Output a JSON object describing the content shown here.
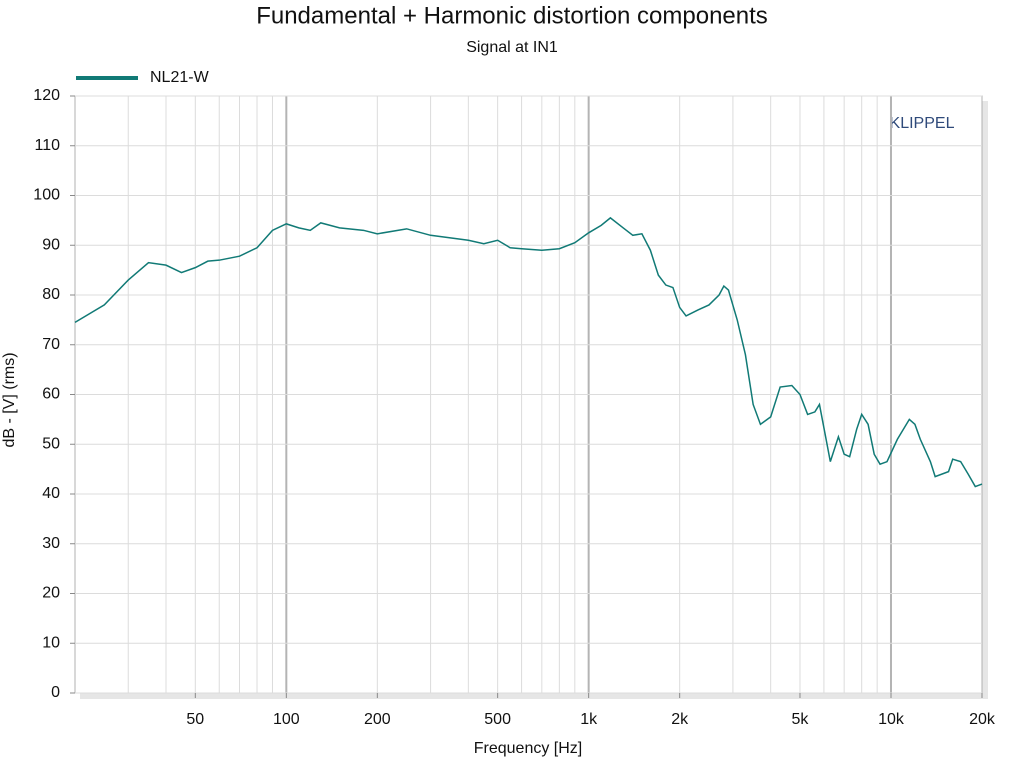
{
  "chart_data": {
    "type": "line",
    "title": "Fundamental + Harmonic distortion components",
    "subtitle": "Signal at IN1",
    "watermark": "KLIPPEL",
    "xlabel": "Frequency [Hz]",
    "ylabel": "dB - [V]  (rms)",
    "xscale": "log",
    "xlim": [
      20,
      20000
    ],
    "ylim": [
      0,
      120
    ],
    "xticks": [
      50,
      100,
      200,
      500,
      {
        "value": 1000,
        "label": "1k"
      },
      {
        "value": 2000,
        "label": "2k"
      },
      {
        "value": 5000,
        "label": "5k"
      },
      {
        "value": 10000,
        "label": "10k"
      },
      {
        "value": 20000,
        "label": "20k"
      }
    ],
    "xgrid": [
      30,
      40,
      50,
      60,
      70,
      80,
      90,
      100,
      200,
      300,
      400,
      500,
      600,
      700,
      800,
      900,
      1000,
      2000,
      3000,
      4000,
      5000,
      6000,
      7000,
      8000,
      9000,
      10000
    ],
    "yticks": [
      0,
      10,
      20,
      30,
      40,
      50,
      60,
      70,
      80,
      90,
      100,
      110,
      120
    ],
    "grid": true,
    "legend": "top-left",
    "series": [
      {
        "name": "NL21-W",
        "color": "#117a76",
        "x": [
          20,
          25,
          30,
          35,
          40,
          45,
          50,
          55,
          60,
          70,
          80,
          90,
          100,
          110,
          120,
          130,
          150,
          180,
          200,
          250,
          300,
          400,
          450,
          500,
          550,
          600,
          700,
          800,
          900,
          1000,
          1100,
          1180,
          1300,
          1400,
          1500,
          1600,
          1700,
          1800,
          1900,
          2000,
          2100,
          2300,
          2500,
          2700,
          2800,
          2900,
          3100,
          3300,
          3500,
          3700,
          4000,
          4300,
          4700,
          5000,
          5300,
          5600,
          5800,
          6100,
          6300,
          6700,
          7000,
          7300,
          7700,
          8000,
          8400,
          8800,
          9200,
          9700,
          10500,
          11500,
          12000,
          12500,
          13500,
          14000,
          15500,
          16000,
          17000,
          18000,
          19000,
          20000
        ],
        "values": [
          74.5,
          78,
          83,
          86.5,
          86,
          84.5,
          85.5,
          86.8,
          87,
          87.8,
          89.5,
          93,
          94.3,
          93.5,
          93,
          94.5,
          93.5,
          93,
          92.3,
          93.3,
          92,
          91,
          90.3,
          91,
          89.5,
          89.3,
          89,
          89.3,
          90.5,
          92.5,
          94,
          95.5,
          93.5,
          92,
          92.3,
          89,
          84,
          82,
          81.5,
          77.5,
          75.8,
          77,
          78,
          80,
          81.8,
          81,
          75,
          68,
          58,
          54,
          55.5,
          61.5,
          61.8,
          60,
          56,
          56.5,
          58,
          51,
          46.5,
          51.5,
          48,
          47.5,
          53,
          56,
          54,
          48,
          46,
          46.5,
          51,
          55,
          54,
          51,
          46.5,
          43.5,
          44.5,
          47,
          46.5,
          44,
          41.5,
          42
        ]
      }
    ]
  }
}
